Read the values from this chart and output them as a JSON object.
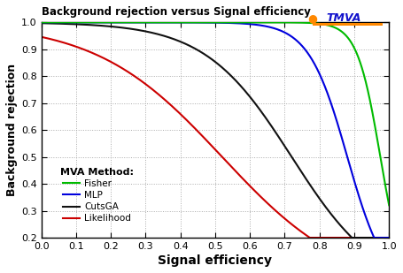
{
  "title": "Background rejection versus Signal efficiency",
  "xlabel": "Signal efficiency",
  "ylabel": "Background rejection",
  "xlim": [
    0,
    1.0
  ],
  "ylim": [
    0.2,
    1.0
  ],
  "xticks": [
    0,
    0.1,
    0.2,
    0.3,
    0.4,
    0.5,
    0.6,
    0.7,
    0.8,
    0.9,
    1.0
  ],
  "yticks": [
    0.2,
    0.3,
    0.4,
    0.5,
    0.6,
    0.7,
    0.8,
    0.9,
    1.0
  ],
  "legend_title": "MVA Method:",
  "legend_entries": [
    "Fisher",
    "MLP",
    "CutsGA",
    "Likelihood"
  ],
  "line_colors": [
    "#00bb00",
    "#0000dd",
    "#111111",
    "#cc0000"
  ],
  "background_color": "#ffffff",
  "grid_color": "#aaaaaa",
  "tmva_text": "TMVA",
  "tmva_text_color": "#1111cc",
  "tmva_icon_color": "#ff8800",
  "fisher_params": [
    30,
    0.975
  ],
  "mlp_params": [
    18,
    0.88
  ],
  "cutsga_params": [
    8,
    0.72
  ],
  "likelihood_params": [
    5.5,
    0.52
  ]
}
